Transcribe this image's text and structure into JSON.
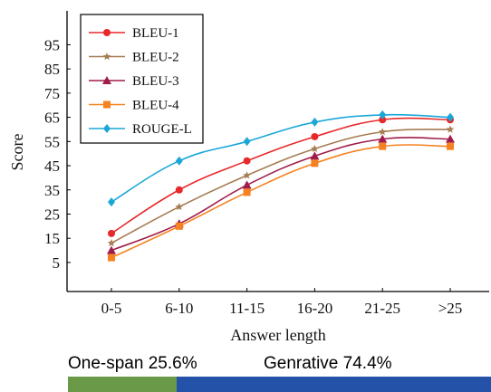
{
  "chart_data": {
    "type": "line",
    "xlabel": "Answer length",
    "ylabel": "Score",
    "categories": [
      "0-5",
      "6-10",
      "11-15",
      "16-20",
      "21-25",
      ">25"
    ],
    "yticks": [
      5,
      15,
      25,
      35,
      45,
      55,
      65,
      75,
      85,
      95
    ],
    "ylim": [
      -7,
      109
    ],
    "legend_position": "top-left",
    "grid": false,
    "series": [
      {
        "name": "BLEU-1",
        "color": "#e8282b",
        "marker": "circle",
        "values": [
          17,
          35,
          47,
          57,
          64,
          64
        ]
      },
      {
        "name": "BLEU-2",
        "color": "#a67c52",
        "marker": "star",
        "values": [
          13,
          28,
          41,
          52,
          59,
          60
        ]
      },
      {
        "name": "BLEU-3",
        "color": "#a01c4a",
        "marker": "triangle",
        "values": [
          10,
          21,
          37,
          49,
          56,
          56
        ]
      },
      {
        "name": "BLEU-4",
        "color": "#f58220",
        "marker": "square",
        "values": [
          7,
          20,
          34,
          46,
          53,
          53
        ]
      },
      {
        "name": "ROUGE-L",
        "color": "#1aa7d8",
        "marker": "diamond",
        "values": [
          30,
          47,
          55,
          63,
          66,
          65
        ]
      }
    ]
  },
  "distribution": {
    "segments": [
      {
        "label": "One-span 25.6%",
        "fraction": 0.256,
        "color": "#6a9a48"
      },
      {
        "label": "Genrative 74.4%",
        "fraction": 0.744,
        "color": "#2452a8"
      }
    ]
  }
}
